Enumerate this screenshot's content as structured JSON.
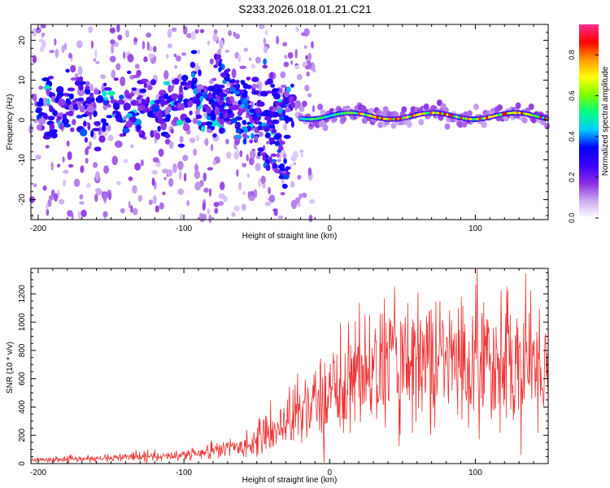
{
  "title": "S233.2026.018.01.21.C21",
  "chart_data": [
    {
      "type": "heatmap",
      "name": "spectrogram",
      "xlabel": "Height of straight line (km)",
      "ylabel": "Frequency (Hz)",
      "xlim": [
        -205,
        150
      ],
      "ylim": [
        -25,
        24
      ],
      "xticks": [
        -200,
        -100,
        0,
        100
      ],
      "yticks": [
        -20,
        -10,
        0,
        10,
        20
      ],
      "colorbar": {
        "label": "Normalized spectral amplitude",
        "range": [
          0,
          0.95
        ],
        "ticks": [
          0.0,
          0.2,
          0.4,
          0.6,
          0.8
        ],
        "colors": [
          "#ffffff",
          "#c9a8f0",
          "#8a2be2",
          "#3a00ff",
          "#0000ff",
          "#00ccff",
          "#00ff80",
          "#7cff00",
          "#ffff00",
          "#ff9900",
          "#ff0000",
          "#ff2d8f"
        ]
      },
      "features": {
        "track_start_km": -20,
        "track_freq_hz": 1,
        "scatter_region_km": [
          -205,
          -30
        ],
        "chirp_lines": [
          {
            "x_start_km": -95,
            "f_start_hz": 10,
            "x_end_km": -28,
            "f_end_hz": -15
          },
          {
            "x_start_km": -78,
            "f_start_hz": 15,
            "x_end_km": -30,
            "f_end_hz": -10
          }
        ]
      }
    },
    {
      "type": "line",
      "name": "snr",
      "xlabel": "Height of straight line (km)",
      "ylabel": "SNR (10 * v/v)",
      "xlim": [
        -205,
        150
      ],
      "ylim": [
        0,
        1380
      ],
      "xticks": [
        -200,
        -100,
        0,
        100
      ],
      "yticks": [
        0,
        200,
        400,
        600,
        800,
        1000,
        1200
      ],
      "color": "#ee3333",
      "profile": {
        "x_km": [
          -205,
          -150,
          -128,
          -118,
          -100,
          -60,
          -40,
          -20,
          0,
          20,
          40,
          60,
          80,
          100,
          120,
          150
        ],
        "mean_snr": [
          25,
          35,
          60,
          45,
          60,
          120,
          220,
          380,
          480,
          650,
          700,
          720,
          740,
          700,
          720,
          700
        ]
      }
    }
  ]
}
